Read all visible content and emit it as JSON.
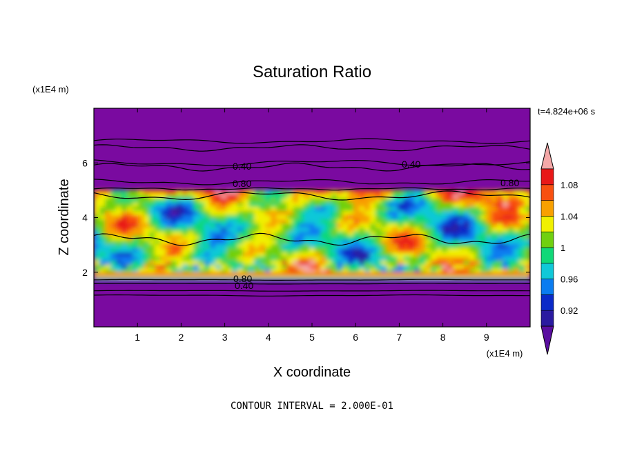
{
  "chart_data": {
    "type": "heatmap",
    "title": "Saturation Ratio",
    "xlabel": "X coordinate",
    "ylabel": "Z coordinate",
    "x_unit": "(x1E4 m)",
    "y_unit": "(x1E4 m)",
    "time_label": "t=4.824e+06 s",
    "footer": "CONTOUR INTERVAL = 2.000E-01",
    "xlim": [
      0,
      10
    ],
    "ylim": [
      0,
      8
    ],
    "x_ticks": [
      "1",
      "2",
      "3",
      "4",
      "5",
      "6",
      "7",
      "8",
      "9"
    ],
    "y_ticks": [
      "2",
      "4",
      "6"
    ],
    "colorbar": {
      "labels": [
        "1.08",
        "1.04",
        "1",
        "0.96",
        "0.92"
      ],
      "levels": [
        0.9,
        0.92,
        0.94,
        0.96,
        0.98,
        1.0,
        1.02,
        1.04,
        1.06,
        1.08,
        1.1
      ],
      "colors": [
        "#5a0ea0",
        "#2a1aa0",
        "#0a2ac8",
        "#0a7cf0",
        "#10c8d8",
        "#10d878",
        "#70d010",
        "#f0f000",
        "#f8a000",
        "#f85010",
        "#e81818",
        "#f4a8a8"
      ]
    },
    "background_color": "#7a0aa0",
    "contour_labels": [
      "0.40",
      "0.80",
      "0.40",
      "0.80",
      "0.80",
      "0.80",
      "0.40"
    ]
  }
}
